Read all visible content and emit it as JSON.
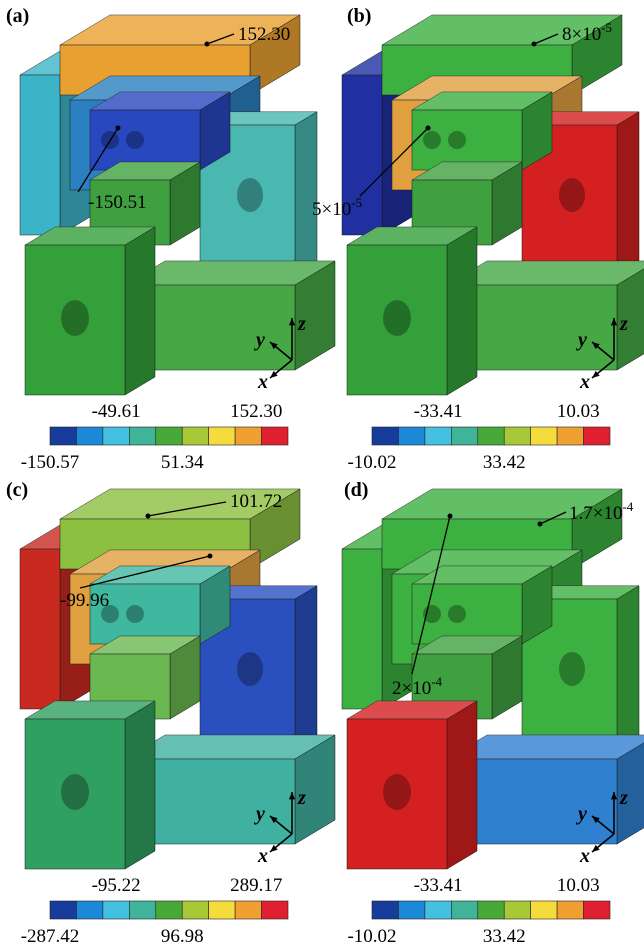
{
  "panels": [
    {
      "label": "(a)",
      "annotations": [
        {
          "text": "152.30"
        },
        {
          "text": "-150.51"
        }
      ],
      "colorbar": {
        "colors": [
          "#183c9c",
          "#1c88d8",
          "#44c0e0",
          "#40b498",
          "#48a838",
          "#a8c838",
          "#f4dc3c",
          "#f0a030",
          "#e02030"
        ],
        "labels_top": [
          "-49.61",
          "152.30"
        ],
        "labels_bottom": [
          "-150.57",
          "51.34"
        ]
      },
      "axes": {
        "x": "x",
        "y": "y",
        "z": "z"
      }
    },
    {
      "label": "(b)",
      "annotations": [
        {
          "text": "8×10",
          "sup": "-5"
        },
        {
          "text": "5×10",
          "sup": "-5"
        }
      ],
      "colorbar": {
        "colors": [
          "#183c9c",
          "#1c88d8",
          "#44c0e0",
          "#40b498",
          "#48a838",
          "#a8c838",
          "#f4dc3c",
          "#f0a030",
          "#e02030"
        ],
        "labels_top": [
          "-33.41",
          "10.03"
        ],
        "labels_bottom": [
          "-10.02",
          "33.42"
        ]
      },
      "axes": {
        "x": "x",
        "y": "y",
        "z": "z"
      }
    },
    {
      "label": "(c)",
      "annotations": [
        {
          "text": "101.72"
        },
        {
          "text": "-99.96"
        }
      ],
      "colorbar": {
        "colors": [
          "#183c9c",
          "#1c88d8",
          "#44c0e0",
          "#40b498",
          "#48a838",
          "#a8c838",
          "#f4dc3c",
          "#f0a030",
          "#e02030"
        ],
        "labels_top": [
          "-95.22",
          "289.17"
        ],
        "labels_bottom": [
          "-287.42",
          "96.98"
        ]
      },
      "axes": {
        "x": "x",
        "y": "y",
        "z": "z"
      }
    },
    {
      "label": "(d)",
      "annotations": [
        {
          "text": "1.7×10",
          "sup": "-4"
        },
        {
          "text": "2×10",
          "sup": "-4"
        }
      ],
      "colorbar": {
        "colors": [
          "#183c9c",
          "#1c88d8",
          "#44c0e0",
          "#40b498",
          "#48a838",
          "#a8c838",
          "#f4dc3c",
          "#f0a030",
          "#e02030"
        ],
        "labels_top": [
          "-33.41",
          "10.03"
        ],
        "labels_bottom": [
          "-10.02",
          "33.42"
        ]
      },
      "axes": {
        "x": "x",
        "y": "y",
        "z": "z"
      }
    }
  ]
}
